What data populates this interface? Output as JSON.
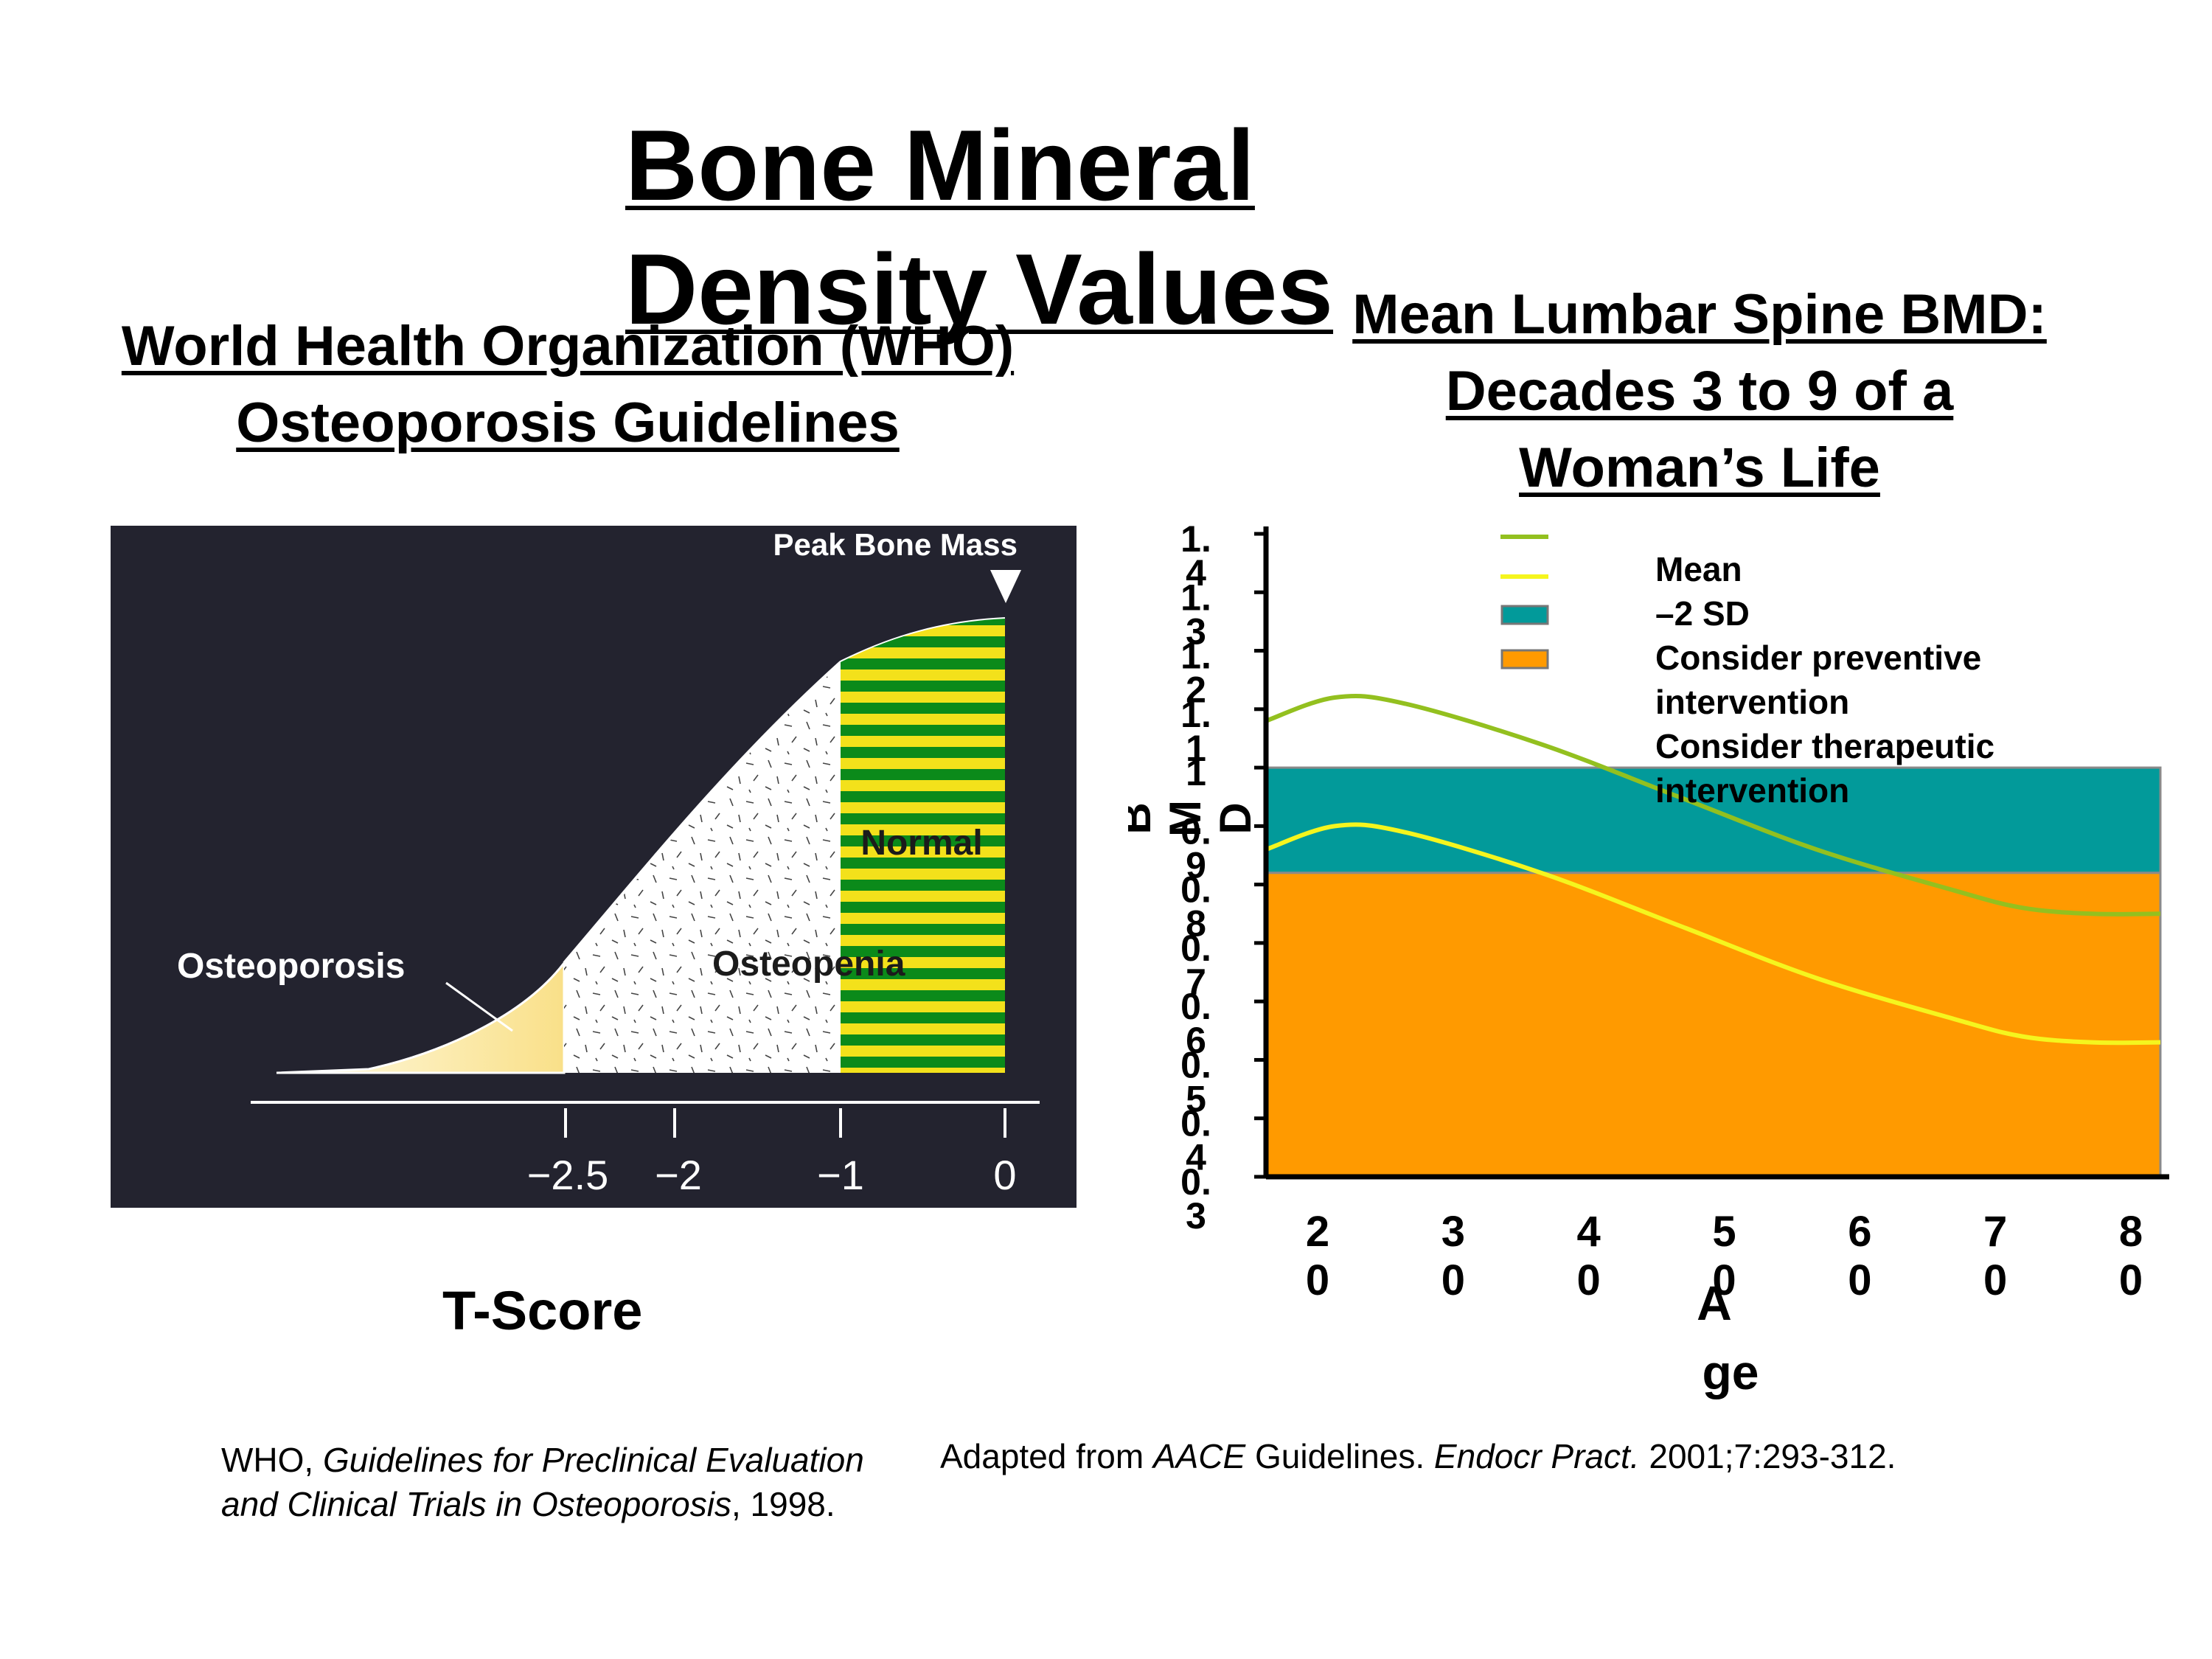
{
  "page": {
    "title_lines": [
      "Bone Mineral",
      "Density Values"
    ]
  },
  "who": {
    "heading_lines": [
      "World Health Organization (WHO)",
      "Osteoporosis Guidelines"
    ],
    "labels": {
      "peak": "Peak Bone Mass",
      "normal": "Normal",
      "osteopenia": "Osteopenia",
      "osteoporosis": "Osteoporosis"
    },
    "tick_labels": [
      "−2.5",
      "−2",
      "−1",
      "0"
    ],
    "caption": "T-Score"
  },
  "lumbar": {
    "heading_lines": [
      "Mean Lumbar Spine BMD:",
      "Decades 3 to 9 of a",
      "Woman’s Life"
    ]
  },
  "citations": {
    "who_prefix": "WHO, ",
    "who_title_1": "Guidelines for Preclinical Evaluation",
    "who_title_2": "and Clinical Trials in Osteoporosis",
    "who_suffix": ", 1998.",
    "aace_prefix": "Adapted from ",
    "aace_italic": "AACE",
    "aace_mid": " Guidelines. ",
    "aace_journal": "Endocr Pract.",
    "aace_suffix": " 2001;7:293-312."
  },
  "colors": {
    "who_background": "#23232f",
    "normal_green": "#0b8a1a",
    "normal_yellow": "#f3e11b",
    "osteoporosis_fill": "#fbeaa0",
    "mean_line": "#93c01f",
    "minus2sd_line": "#f5f51e",
    "preventive_band": "#029a9a",
    "therapeutic_band": "#ff9a00"
  },
  "chart_data": {
    "type": "line",
    "title": "Mean Lumbar Spine BMD: Decades 3 to 9 of a Woman’s Life",
    "xlabel": "A ge",
    "ylabel": "B M D",
    "x_ticks": [
      "2 0",
      "3 0",
      "4 0",
      "5 0",
      "6 0",
      "7 0",
      "8 0"
    ],
    "y_ticks": [
      "1. 4",
      "1. 3",
      "1. 2",
      "1. 1",
      "1",
      "0. 9",
      "0. 8",
      "0. 7",
      "0. 6",
      "0. 5",
      "0. 4",
      "0. 3"
    ],
    "xlim": [
      20,
      85
    ],
    "ylim": [
      0.3,
      1.4
    ],
    "series": [
      {
        "name": "Mean",
        "color": "#93c01f",
        "x": [
          20,
          25,
          30,
          40,
          50,
          60,
          70,
          75,
          80,
          85
        ],
        "y": [
          1.08,
          1.12,
          1.11,
          1.04,
          0.95,
          0.86,
          0.79,
          0.76,
          0.75,
          0.75
        ]
      },
      {
        "name": "–2 SD",
        "color": "#f5f51e",
        "x": [
          20,
          25,
          30,
          40,
          50,
          60,
          70,
          75,
          80,
          85
        ],
        "y": [
          0.86,
          0.9,
          0.89,
          0.82,
          0.73,
          0.64,
          0.57,
          0.54,
          0.53,
          0.53
        ]
      }
    ],
    "bands": [
      {
        "name": "Consider preventive intervention",
        "color": "#029a9a",
        "y0": 0.82,
        "y1": 1.0
      },
      {
        "name": "Consider therapeutic intervention",
        "color": "#ff9a00",
        "y0": 0.3,
        "y1": 0.82
      }
    ],
    "legend": [
      "Mean",
      "–2 SD",
      "Consider preventive intervention",
      "Consider therapeutic intervention"
    ],
    "legend_position": "top-right",
    "grid": false
  }
}
